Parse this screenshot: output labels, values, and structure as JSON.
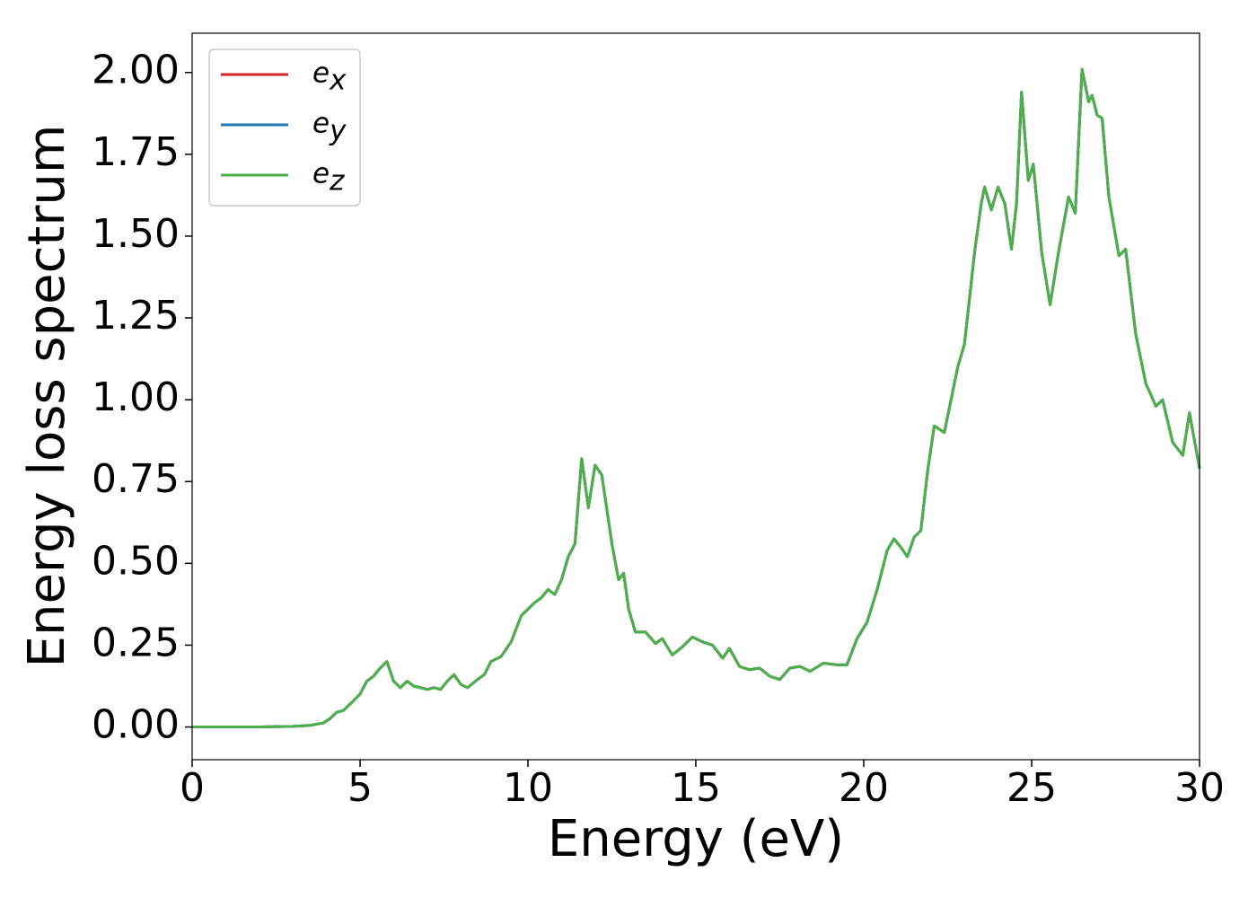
{
  "chart_data": {
    "type": "line",
    "xlabel": "Energy (eV)",
    "ylabel": "Energy loss spectrum",
    "x": [
      0,
      1,
      2,
      3,
      3.5,
      3.9,
      4.1,
      4.3,
      4.5,
      4.7,
      5.0,
      5.2,
      5.4,
      5.6,
      5.8,
      6.0,
      6.2,
      6.4,
      6.6,
      6.8,
      7.0,
      7.2,
      7.4,
      7.6,
      7.8,
      8.0,
      8.2,
      8.5,
      8.7,
      8.9,
      9.2,
      9.5,
      9.8,
      10.0,
      10.2,
      10.4,
      10.6,
      10.8,
      11.0,
      11.2,
      11.4,
      11.6,
      11.8,
      12.0,
      12.2,
      12.5,
      12.7,
      12.85,
      13.0,
      13.2,
      13.5,
      13.8,
      14.0,
      14.3,
      14.6,
      14.9,
      15.2,
      15.5,
      15.8,
      16.0,
      16.3,
      16.6,
      16.9,
      17.2,
      17.5,
      17.8,
      18.1,
      18.4,
      18.8,
      19.2,
      19.5,
      19.8,
      20.1,
      20.4,
      20.7,
      20.9,
      21.1,
      21.3,
      21.5,
      21.7,
      21.9,
      22.1,
      22.4,
      22.6,
      22.8,
      23.0,
      23.3,
      23.5,
      23.6,
      23.8,
      24.0,
      24.2,
      24.4,
      24.55,
      24.7,
      24.9,
      25.05,
      25.3,
      25.55,
      25.8,
      26.1,
      26.3,
      26.5,
      26.7,
      26.8,
      26.95,
      27.1,
      27.3,
      27.6,
      27.8,
      28.1,
      28.4,
      28.7,
      28.9,
      29.2,
      29.5,
      29.7,
      30.0
    ],
    "series": [
      {
        "name": "ex",
        "color": "#d62728",
        "values": [
          0,
          0,
          0,
          0.002,
          0.005,
          0.012,
          0.025,
          0.045,
          0.05,
          0.07,
          0.1,
          0.14,
          0.155,
          0.18,
          0.2,
          0.14,
          0.12,
          0.14,
          0.125,
          0.12,
          0.115,
          0.12,
          0.115,
          0.14,
          0.16,
          0.13,
          0.12,
          0.145,
          0.16,
          0.2,
          0.215,
          0.26,
          0.34,
          0.36,
          0.38,
          0.395,
          0.42,
          0.405,
          0.45,
          0.52,
          0.56,
          0.82,
          0.67,
          0.8,
          0.77,
          0.56,
          0.45,
          0.47,
          0.36,
          0.29,
          0.29,
          0.255,
          0.27,
          0.22,
          0.245,
          0.275,
          0.26,
          0.25,
          0.21,
          0.24,
          0.185,
          0.175,
          0.18,
          0.155,
          0.145,
          0.18,
          0.185,
          0.17,
          0.195,
          0.19,
          0.19,
          0.27,
          0.32,
          0.42,
          0.54,
          0.575,
          0.55,
          0.52,
          0.58,
          0.6,
          0.78,
          0.92,
          0.9,
          1.0,
          1.1,
          1.17,
          1.45,
          1.6,
          1.65,
          1.58,
          1.65,
          1.6,
          1.46,
          1.6,
          1.94,
          1.67,
          1.72,
          1.45,
          1.29,
          1.45,
          1.62,
          1.57,
          2.01,
          1.91,
          1.93,
          1.87,
          1.86,
          1.62,
          1.44,
          1.46,
          1.2,
          1.05,
          0.98,
          1.0,
          0.87,
          0.83,
          0.96,
          0.79
        ]
      },
      {
        "name": "ey",
        "color": "#1f77b4",
        "values": [
          0,
          0,
          0,
          0.002,
          0.005,
          0.012,
          0.025,
          0.045,
          0.05,
          0.07,
          0.1,
          0.14,
          0.155,
          0.18,
          0.2,
          0.14,
          0.12,
          0.14,
          0.125,
          0.12,
          0.115,
          0.12,
          0.115,
          0.14,
          0.16,
          0.13,
          0.12,
          0.145,
          0.16,
          0.2,
          0.215,
          0.26,
          0.34,
          0.36,
          0.38,
          0.395,
          0.42,
          0.405,
          0.45,
          0.52,
          0.56,
          0.82,
          0.67,
          0.8,
          0.77,
          0.56,
          0.45,
          0.47,
          0.36,
          0.29,
          0.29,
          0.255,
          0.27,
          0.22,
          0.245,
          0.275,
          0.26,
          0.25,
          0.21,
          0.24,
          0.185,
          0.175,
          0.18,
          0.155,
          0.145,
          0.18,
          0.185,
          0.17,
          0.195,
          0.19,
          0.19,
          0.27,
          0.32,
          0.42,
          0.54,
          0.575,
          0.55,
          0.52,
          0.58,
          0.6,
          0.78,
          0.92,
          0.9,
          1.0,
          1.1,
          1.17,
          1.45,
          1.6,
          1.65,
          1.58,
          1.65,
          1.6,
          1.46,
          1.6,
          1.94,
          1.67,
          1.72,
          1.45,
          1.29,
          1.45,
          1.62,
          1.57,
          2.01,
          1.91,
          1.93,
          1.87,
          1.86,
          1.62,
          1.44,
          1.46,
          1.2,
          1.05,
          0.98,
          1.0,
          0.87,
          0.83,
          0.96,
          0.79
        ]
      },
      {
        "name": "ez",
        "color": "#4daf4a",
        "values": [
          0,
          0,
          0,
          0.002,
          0.005,
          0.012,
          0.025,
          0.045,
          0.05,
          0.07,
          0.1,
          0.14,
          0.155,
          0.18,
          0.2,
          0.14,
          0.12,
          0.14,
          0.125,
          0.12,
          0.115,
          0.12,
          0.115,
          0.14,
          0.16,
          0.13,
          0.12,
          0.145,
          0.16,
          0.2,
          0.215,
          0.26,
          0.34,
          0.36,
          0.38,
          0.395,
          0.42,
          0.405,
          0.45,
          0.52,
          0.56,
          0.82,
          0.67,
          0.8,
          0.77,
          0.56,
          0.45,
          0.47,
          0.36,
          0.29,
          0.29,
          0.255,
          0.27,
          0.22,
          0.245,
          0.275,
          0.26,
          0.25,
          0.21,
          0.24,
          0.185,
          0.175,
          0.18,
          0.155,
          0.145,
          0.18,
          0.185,
          0.17,
          0.195,
          0.19,
          0.19,
          0.27,
          0.32,
          0.42,
          0.54,
          0.575,
          0.55,
          0.52,
          0.58,
          0.6,
          0.78,
          0.92,
          0.9,
          1.0,
          1.1,
          1.17,
          1.45,
          1.6,
          1.65,
          1.58,
          1.65,
          1.6,
          1.46,
          1.6,
          1.94,
          1.67,
          1.72,
          1.45,
          1.29,
          1.45,
          1.62,
          1.57,
          2.01,
          1.91,
          1.93,
          1.87,
          1.86,
          1.62,
          1.44,
          1.46,
          1.2,
          1.05,
          0.98,
          1.0,
          0.87,
          0.83,
          0.96,
          0.79
        ]
      }
    ],
    "xlim": [
      0,
      30
    ],
    "xticks": [
      0,
      5,
      10,
      15,
      20,
      25,
      30
    ],
    "ylim": [
      -0.1,
      2.12
    ],
    "yticks": [
      {
        "value": 0,
        "label": "0.00"
      },
      {
        "value": 0.25,
        "label": "0.25"
      },
      {
        "value": 0.5,
        "label": "0.50"
      },
      {
        "value": 0.75,
        "label": "0.75"
      },
      {
        "value": 1.0,
        "label": "1.00"
      },
      {
        "value": 1.25,
        "label": "1.25"
      },
      {
        "value": 1.5,
        "label": "1.50"
      },
      {
        "value": 1.75,
        "label": "1.75"
      },
      {
        "value": 2.0,
        "label": "2.00"
      }
    ],
    "grid": false,
    "legend": "upper left"
  }
}
